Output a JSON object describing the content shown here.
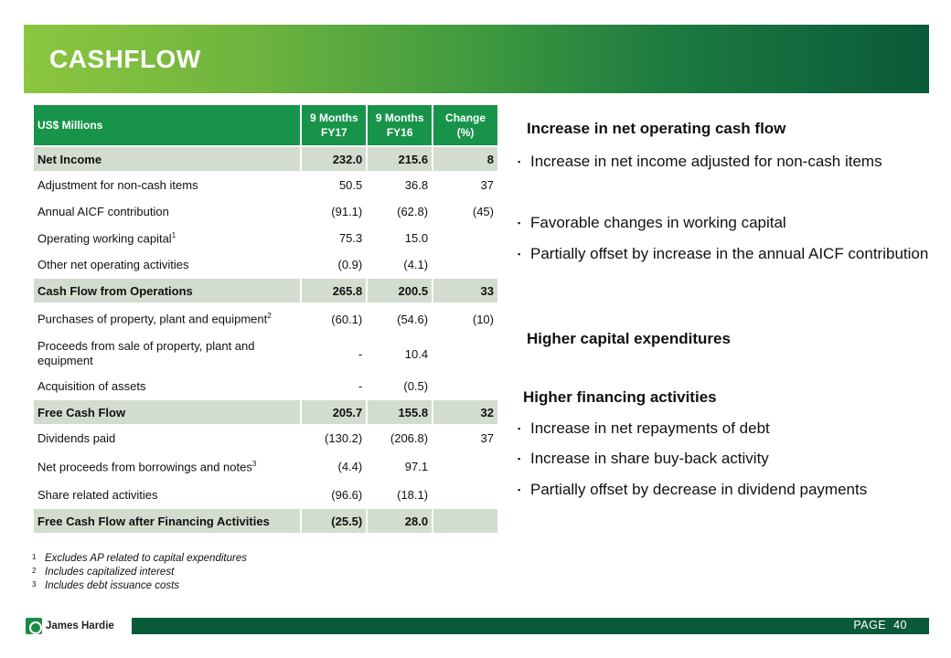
{
  "title": "CASHFLOW",
  "table": {
    "headers": [
      "US$ Millions",
      "9 Months FY17",
      "9 Months FY16",
      "Change (%)"
    ],
    "rows": [
      {
        "label": "Net Income",
        "fy17": "232.0",
        "fy16": "215.6",
        "change": "8"
      },
      {
        "label": "Adjustment for non-cash items",
        "fy17": "50.5",
        "fy16": "36.8",
        "change": "37"
      },
      {
        "label": "Annual AICF contribution",
        "fy17": "(91.1)",
        "fy16": "(62.8)",
        "change": "(45)"
      },
      {
        "label": "Operating working capital",
        "sup": "1",
        "fy17": "75.3",
        "fy16": "15.0",
        "change": ""
      },
      {
        "label": "Other net operating activities",
        "fy17": "(0.9)",
        "fy16": "(4.1)",
        "change": ""
      },
      {
        "label": "Cash Flow from Operations",
        "fy17": "265.8",
        "fy16": "200.5",
        "change": "33"
      },
      {
        "label": "Purchases of property, plant and equipment",
        "sup": "2",
        "fy17": "(60.1)",
        "fy16": "(54.6)",
        "change": "(10)"
      },
      {
        "label": "Proceeds from sale of property, plant and equipment",
        "fy17": "-",
        "fy16": "10.4",
        "change": ""
      },
      {
        "label": "Acquisition of assets",
        "fy17": "-",
        "fy16": "(0.5)",
        "change": ""
      },
      {
        "label": "Free Cash Flow",
        "fy17": "205.7",
        "fy16": "155.8",
        "change": "32"
      },
      {
        "label": "Dividends paid",
        "fy17": "(130.2)",
        "fy16": "(206.8)",
        "change": "37"
      },
      {
        "label": "Net proceeds from borrowings and notes",
        "sup": "3",
        "fy17": "(4.4)",
        "fy16": "97.1",
        "change": ""
      },
      {
        "label": "Share related activities",
        "fy17": "(96.6)",
        "fy16": "(18.1)",
        "change": ""
      },
      {
        "label": "Free Cash Flow after Financing Activities",
        "fy17": "(25.5)",
        "fy16": "28.0",
        "change": ""
      }
    ]
  },
  "commentary": {
    "operating_heading": "Increase in net operating cash flow",
    "operating_bullets": [
      "Increase in net income adjusted for non-cash items",
      "Favorable changes in working capital",
      "Partially offset by increase in the annual AICF contribution"
    ],
    "capex_heading": "Higher capital expenditures",
    "financing_heading": "Higher financing activities",
    "financing_bullets": [
      "Increase in net repayments of debt",
      "Increase in share buy-back activity",
      "Partially offset by decrease in dividend payments"
    ]
  },
  "footnotes": [
    {
      "n": "1",
      "text": "Excludes AP related to capital expenditures"
    },
    {
      "n": "2",
      "text": "Includes capitalized interest"
    },
    {
      "n": "3",
      "text": "Includes debt issuance costs"
    }
  ],
  "footer": {
    "page_label": "PAGE",
    "page_number": "40",
    "brand": "James Hardie"
  }
}
